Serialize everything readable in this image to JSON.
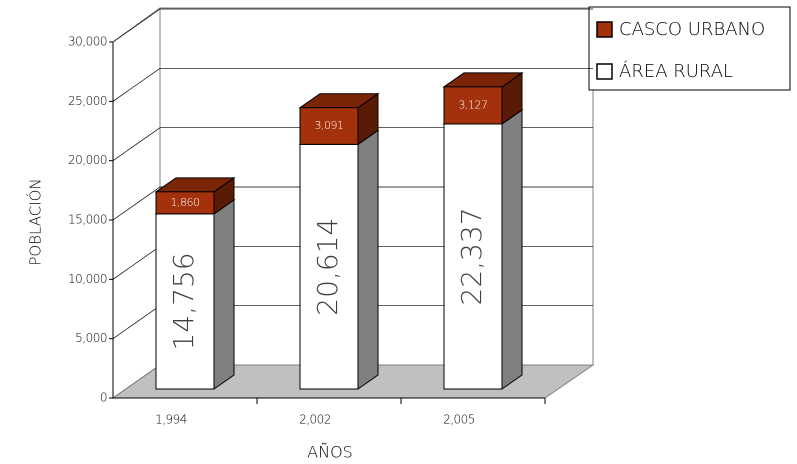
{
  "chart_data": {
    "type": "stacked-bar-3d",
    "x_label": "AÑOS",
    "y_label": "POBLACIÓN",
    "categories": [
      "1,994",
      "2,002",
      "2,005"
    ],
    "series": [
      {
        "name": "ÁREA RURAL",
        "color": "#ffffff",
        "values": [
          14756,
          20614,
          22337
        ],
        "value_labels": [
          "14,756",
          "20,614",
          "22,337"
        ]
      },
      {
        "name": "CASCO URBANO",
        "color": "#a3310b",
        "values": [
          1860,
          3091,
          3127
        ],
        "value_labels": [
          "1,860",
          "3,091",
          "3,127"
        ]
      }
    ],
    "ylim": [
      0,
      30000
    ],
    "yticks": [
      0,
      {
        "value": 5000,
        "label": "5,000"
      },
      {
        "value": 10000,
        "label": "10,000"
      },
      {
        "value": 15000,
        "label": "15,000"
      },
      {
        "value": 20000,
        "label": "20,000"
      },
      {
        "value": 25000,
        "label": "25,000"
      },
      {
        "value": 30000,
        "label": "30,000"
      }
    ],
    "grid": true
  }
}
